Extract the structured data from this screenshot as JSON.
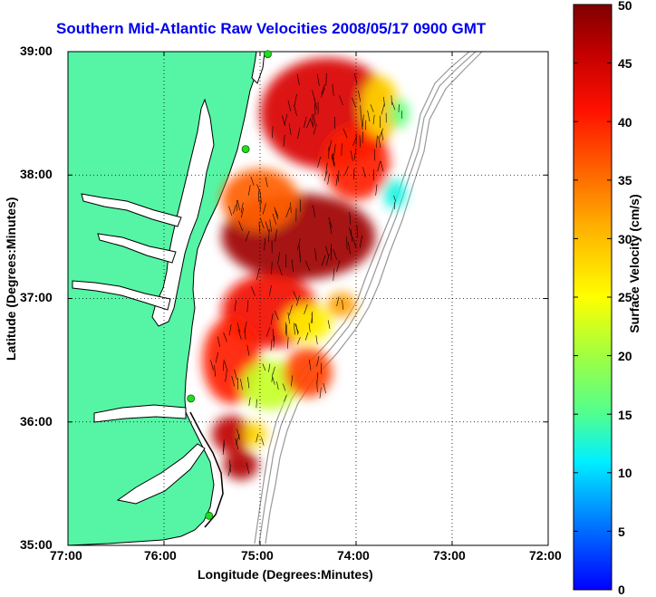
{
  "title": "Southern Mid-Atlantic Raw Velocities 2008/05/17 0900 GMT",
  "xlabel": "Longitude (Degrees:Minutes)",
  "ylabel": "Latitude (Degrees:Minutes)",
  "colorbar": {
    "label": "Surface Velocity (cm/s)",
    "min": 0,
    "max": 50,
    "ticks": [
      "0",
      "5",
      "10",
      "15",
      "20",
      "25",
      "30",
      "35",
      "40",
      "45",
      "50"
    ]
  },
  "axes": {
    "x_ticks": [
      "77:00",
      "76:00",
      "75:00",
      "74:00",
      "73:00",
      "72:00"
    ],
    "y_ticks": [
      "39:00",
      "38:00",
      "37:00",
      "36:00",
      "35:00"
    ],
    "xlim": [
      -77,
      -72
    ],
    "ylim": [
      35,
      39
    ],
    "grid": true
  },
  "colors": {
    "land": "#55f5a5",
    "water": "#ffffff",
    "title": "#0000ee",
    "coastline": "#000000",
    "bathymetry": "#999999",
    "stations": "#22dd22"
  },
  "stations": [
    {
      "lon": -74.92,
      "lat": 38.98
    },
    {
      "lon": -75.15,
      "lat": 38.21
    },
    {
      "lon": -75.72,
      "lat": 36.19
    },
    {
      "lon": -75.53,
      "lat": 35.24
    }
  ],
  "chart_data": {
    "type": "heatmap",
    "title": "Southern Mid-Atlantic Raw Velocities 2008/05/17 0900 GMT",
    "xlabel": "Longitude (Degrees:Minutes)",
    "ylabel": "Latitude (Degrees:Minutes)",
    "xlim": [
      -77,
      -72
    ],
    "ylim": [
      35,
      39
    ],
    "value_label": "Surface Velocity (cm/s)",
    "value_range": [
      0,
      50
    ],
    "regions": [
      {
        "lon": -74.3,
        "lat": 38.5,
        "speed": 44,
        "rlon": 0.7,
        "rlat": 0.45
      },
      {
        "lon": -74.0,
        "lat": 38.1,
        "speed": 40,
        "rlon": 0.35,
        "rlat": 0.3
      },
      {
        "lon": -73.75,
        "lat": 38.55,
        "speed": 28,
        "rlon": 0.2,
        "rlat": 0.25
      },
      {
        "lon": -73.6,
        "lat": 37.85,
        "speed": 12,
        "rlon": 0.12,
        "rlat": 0.12
      },
      {
        "lon": -73.55,
        "lat": 38.5,
        "speed": 16,
        "rlon": 0.1,
        "rlat": 0.12
      },
      {
        "lon": -74.6,
        "lat": 37.5,
        "speed": 48,
        "rlon": 0.8,
        "rlat": 0.35
      },
      {
        "lon": -75.0,
        "lat": 37.8,
        "speed": 36,
        "rlon": 0.4,
        "rlat": 0.25
      },
      {
        "lon": -74.9,
        "lat": 36.9,
        "speed": 42,
        "rlon": 0.5,
        "rlat": 0.3
      },
      {
        "lon": -74.5,
        "lat": 36.8,
        "speed": 26,
        "rlon": 0.25,
        "rlat": 0.15
      },
      {
        "lon": -74.15,
        "lat": 36.95,
        "speed": 32,
        "rlon": 0.15,
        "rlat": 0.1
      },
      {
        "lon": -75.3,
        "lat": 36.5,
        "speed": 40,
        "rlon": 0.3,
        "rlat": 0.35
      },
      {
        "lon": -74.9,
        "lat": 36.3,
        "speed": 22,
        "rlon": 0.3,
        "rlat": 0.2
      },
      {
        "lon": -74.5,
        "lat": 36.4,
        "speed": 38,
        "rlon": 0.25,
        "rlat": 0.2
      },
      {
        "lon": -75.3,
        "lat": 35.9,
        "speed": 46,
        "rlon": 0.2,
        "rlat": 0.15
      },
      {
        "lon": -75.05,
        "lat": 35.9,
        "speed": 28,
        "rlon": 0.12,
        "rlat": 0.1
      },
      {
        "lon": -75.2,
        "lat": 35.65,
        "speed": 47,
        "rlon": 0.18,
        "rlat": 0.12
      }
    ],
    "mean_current_direction": "south / south-southeast"
  }
}
